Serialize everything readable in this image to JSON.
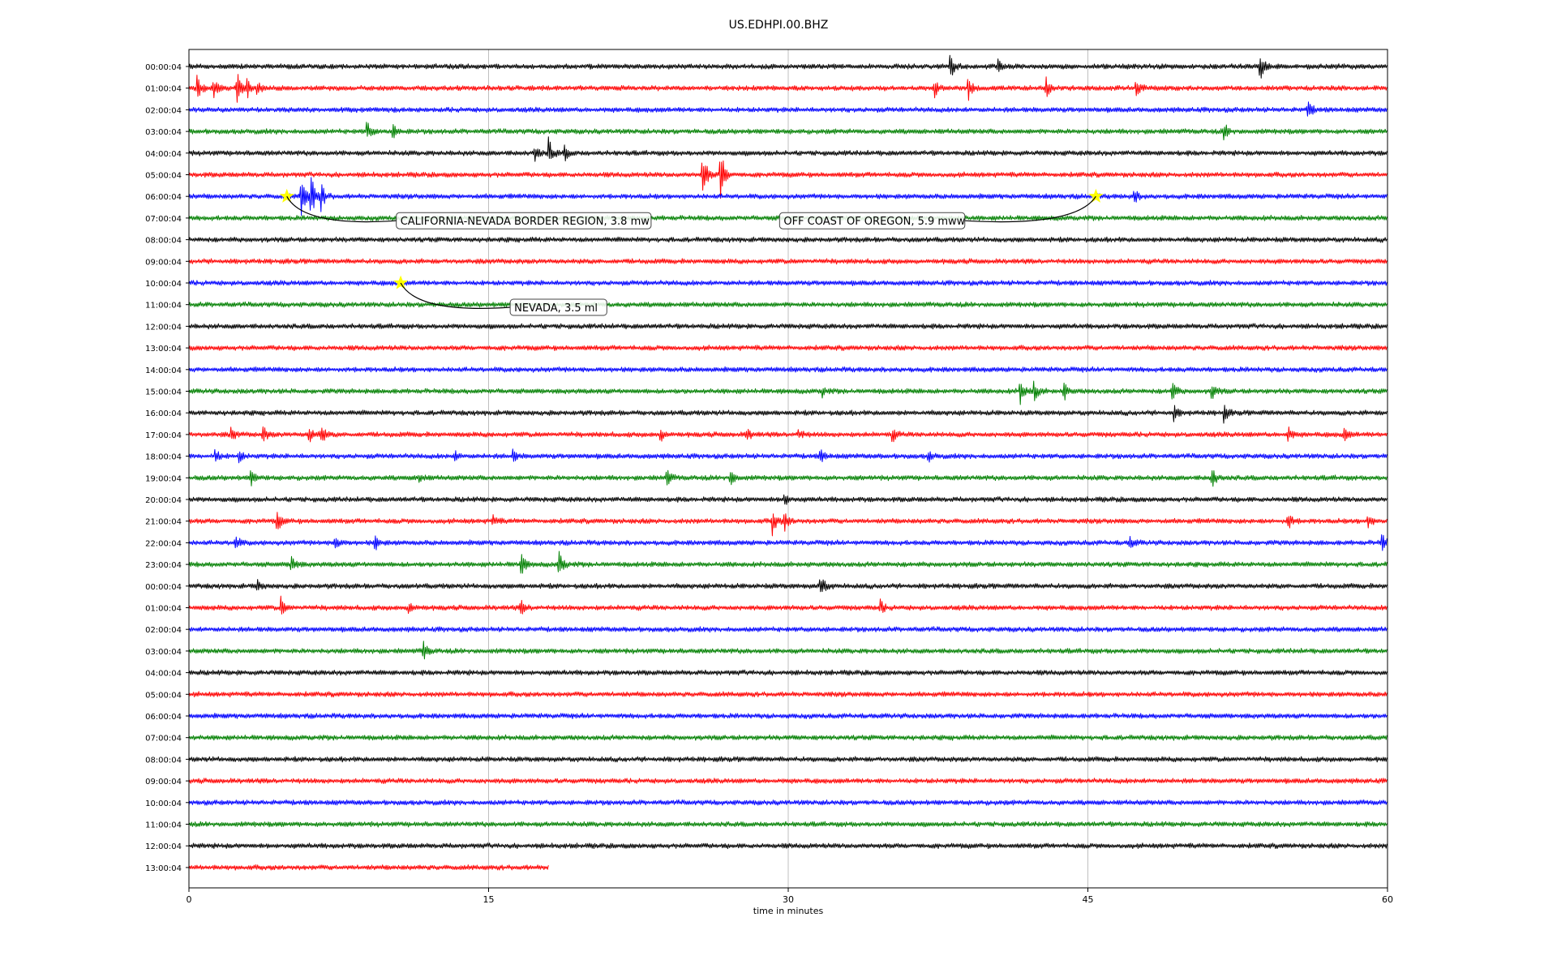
{
  "chart_data": {
    "type": "line",
    "title": "US.EDHPI.00.BHZ",
    "xlabel": "time in minutes",
    "ylabel": "",
    "xlim": [
      0,
      60
    ],
    "xticks": [
      0,
      15,
      30,
      45,
      60
    ],
    "xtick_labels": [
      "0",
      "15",
      "30",
      "45",
      "60"
    ],
    "grid": "vertical",
    "trace_colors": [
      "#000000",
      "#ff0000",
      "#0000ff",
      "#008000"
    ],
    "rows": [
      {
        "label": "00:00:04",
        "end": 60,
        "events": [
          {
            "t": 38.1,
            "a": 1.2
          },
          {
            "t": 40.5,
            "a": 0.5
          },
          {
            "t": 53.6,
            "a": 1.3
          }
        ]
      },
      {
        "label": "01:00:04",
        "end": 60,
        "events": [
          {
            "t": 0.4,
            "a": 1.0
          },
          {
            "t": 1.2,
            "a": 0.9
          },
          {
            "t": 2.4,
            "a": 1.4
          },
          {
            "t": 2.9,
            "a": 0.9
          },
          {
            "t": 3.4,
            "a": 0.8
          },
          {
            "t": 37.3,
            "a": 0.9
          },
          {
            "t": 39.0,
            "a": 1.0
          },
          {
            "t": 42.9,
            "a": 1.0
          },
          {
            "t": 47.4,
            "a": 1.0
          }
        ]
      },
      {
        "label": "02:00:04",
        "end": 60,
        "events": [
          {
            "t": 56.0,
            "a": 0.9
          }
        ]
      },
      {
        "label": "03:00:04",
        "end": 60,
        "events": [
          {
            "t": 8.9,
            "a": 0.9
          },
          {
            "t": 10.2,
            "a": 0.6
          },
          {
            "t": 51.8,
            "a": 0.8
          }
        ]
      },
      {
        "label": "04:00:04",
        "end": 60,
        "events": [
          {
            "t": 17.3,
            "a": 0.7
          },
          {
            "t": 18.0,
            "a": 1.3
          },
          {
            "t": 18.8,
            "a": 0.6
          }
        ]
      },
      {
        "label": "05:00:04",
        "end": 60,
        "events": [
          {
            "t": 25.7,
            "a": 2.3
          },
          {
            "t": 26.6,
            "a": 2.5
          }
        ]
      },
      {
        "label": "06:00:04",
        "end": 60,
        "events": [
          {
            "t": 5.6,
            "a": 2.3
          },
          {
            "t": 6.1,
            "a": 2.0
          },
          {
            "t": 6.6,
            "a": 1.1
          },
          {
            "t": 47.3,
            "a": 0.6
          }
        ]
      },
      {
        "label": "07:00:04",
        "end": 60,
        "events": []
      },
      {
        "label": "08:00:04",
        "end": 60,
        "events": []
      },
      {
        "label": "09:00:04",
        "end": 60,
        "events": []
      },
      {
        "label": "10:00:04",
        "end": 60,
        "events": []
      },
      {
        "label": "11:00:04",
        "end": 60,
        "events": []
      },
      {
        "label": "12:00:04",
        "end": 60,
        "events": []
      },
      {
        "label": "13:00:04",
        "end": 60,
        "events": []
      },
      {
        "label": "14:00:04",
        "end": 60,
        "events": []
      },
      {
        "label": "15:00:04",
        "end": 60,
        "events": [
          {
            "t": 31.7,
            "a": 0.4
          },
          {
            "t": 41.6,
            "a": 1.2
          },
          {
            "t": 42.3,
            "a": 0.9
          },
          {
            "t": 43.8,
            "a": 0.8
          },
          {
            "t": 49.2,
            "a": 0.9
          },
          {
            "t": 51.2,
            "a": 0.8
          }
        ]
      },
      {
        "label": "16:00:04",
        "end": 60,
        "events": [
          {
            "t": 49.3,
            "a": 0.6
          },
          {
            "t": 51.8,
            "a": 0.7
          }
        ]
      },
      {
        "label": "17:00:04",
        "end": 60,
        "events": [
          {
            "t": 2.1,
            "a": 0.6
          },
          {
            "t": 3.7,
            "a": 0.7
          },
          {
            "t": 6.0,
            "a": 0.8
          },
          {
            "t": 6.6,
            "a": 0.9
          },
          {
            "t": 23.6,
            "a": 0.6
          },
          {
            "t": 27.9,
            "a": 0.6
          },
          {
            "t": 30.5,
            "a": 0.5
          },
          {
            "t": 35.2,
            "a": 0.6
          },
          {
            "t": 55.0,
            "a": 0.7
          },
          {
            "t": 57.8,
            "a": 0.6
          }
        ]
      },
      {
        "label": "18:00:04",
        "end": 60,
        "events": [
          {
            "t": 1.3,
            "a": 0.6
          },
          {
            "t": 2.5,
            "a": 0.5
          },
          {
            "t": 13.3,
            "a": 0.4
          },
          {
            "t": 16.2,
            "a": 0.5
          },
          {
            "t": 31.6,
            "a": 0.6
          },
          {
            "t": 37.0,
            "a": 0.5
          }
        ]
      },
      {
        "label": "19:00:04",
        "end": 60,
        "events": [
          {
            "t": 3.1,
            "a": 0.8
          },
          {
            "t": 11.5,
            "a": 0.4
          },
          {
            "t": 23.9,
            "a": 0.8
          },
          {
            "t": 27.1,
            "a": 0.8
          },
          {
            "t": 51.2,
            "a": 1.0
          }
        ]
      },
      {
        "label": "20:00:04",
        "end": 60,
        "events": [
          {
            "t": 29.8,
            "a": 0.6
          }
        ]
      },
      {
        "label": "21:00:04",
        "end": 60,
        "events": [
          {
            "t": 4.4,
            "a": 0.9
          },
          {
            "t": 15.2,
            "a": 0.5
          },
          {
            "t": 29.2,
            "a": 1.1
          },
          {
            "t": 29.8,
            "a": 0.8
          },
          {
            "t": 55.0,
            "a": 0.8
          },
          {
            "t": 59.0,
            "a": 0.6
          }
        ]
      },
      {
        "label": "22:00:04",
        "end": 60,
        "events": [
          {
            "t": 2.3,
            "a": 0.7
          },
          {
            "t": 7.3,
            "a": 0.8
          },
          {
            "t": 9.3,
            "a": 0.7
          },
          {
            "t": 47.1,
            "a": 0.5
          },
          {
            "t": 59.7,
            "a": 0.9
          }
        ]
      },
      {
        "label": "23:00:04",
        "end": 60,
        "events": [
          {
            "t": 5.1,
            "a": 0.9
          },
          {
            "t": 16.6,
            "a": 1.1
          },
          {
            "t": 18.5,
            "a": 1.2
          }
        ]
      },
      {
        "label": "00:00:04",
        "end": 60,
        "events": [
          {
            "t": 3.4,
            "a": 0.5
          },
          {
            "t": 31.6,
            "a": 1.1
          }
        ]
      },
      {
        "label": "01:00:04",
        "end": 60,
        "events": [
          {
            "t": 4.6,
            "a": 0.8
          },
          {
            "t": 11.0,
            "a": 0.6
          },
          {
            "t": 16.6,
            "a": 0.7
          },
          {
            "t": 34.6,
            "a": 0.6
          }
        ]
      },
      {
        "label": "02:00:04",
        "end": 60,
        "events": []
      },
      {
        "label": "03:00:04",
        "end": 60,
        "events": [
          {
            "t": 11.7,
            "a": 0.9
          }
        ]
      },
      {
        "label": "04:00:04",
        "end": 60,
        "events": []
      },
      {
        "label": "05:00:04",
        "end": 60,
        "events": []
      },
      {
        "label": "06:00:04",
        "end": 60,
        "events": []
      },
      {
        "label": "07:00:04",
        "end": 60,
        "events": []
      },
      {
        "label": "08:00:04",
        "end": 60,
        "events": []
      },
      {
        "label": "09:00:04",
        "end": 60,
        "events": []
      },
      {
        "label": "10:00:04",
        "end": 60,
        "events": []
      },
      {
        "label": "11:00:04",
        "end": 60,
        "events": []
      },
      {
        "label": "12:00:04",
        "end": 60,
        "events": []
      },
      {
        "label": "13:00:04",
        "end": 18,
        "events": []
      }
    ],
    "annotations": [
      {
        "text": "CALIFORNIA-NEVADA BORDER REGION, 3.8 mw",
        "row": 6,
        "t": 4.9
      },
      {
        "text": "OFF COAST OF OREGON, 5.9 mww",
        "row": 6,
        "t": 45.4
      },
      {
        "text": "NEVADA, 3.5 ml",
        "row": 10,
        "t": 10.6
      }
    ],
    "marker_color": "#ffff00"
  }
}
